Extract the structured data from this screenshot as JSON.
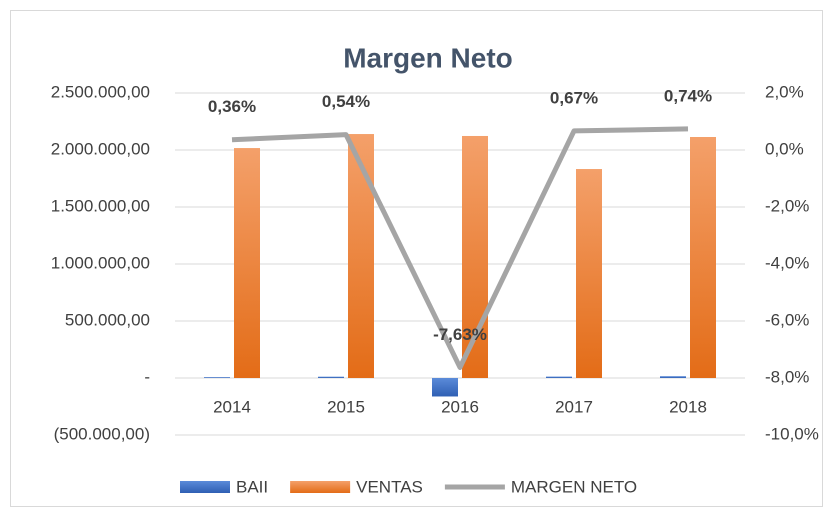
{
  "chart_data": {
    "type": "bar",
    "title": "Margen Neto",
    "categories": [
      "2014",
      "2015",
      "2016",
      "2017",
      "2018"
    ],
    "series": [
      {
        "name": "BAII",
        "color": "#4472c4",
        "values": [
          7260,
          11556,
          -162000,
          12281,
          15644
        ]
      },
      {
        "name": "VENTAS",
        "color": "#ed7d31",
        "values": [
          2017000,
          2140000,
          2123000,
          1833000,
          2114000
        ]
      },
      {
        "name": "MARGEN NETO",
        "color": "#a5a5a5",
        "type": "line",
        "axis": "y2",
        "values": [
          0.36,
          0.54,
          -7.63,
          0.67,
          0.74
        ],
        "value_labels": [
          "0,36%",
          "0,54%",
          "-7,63%",
          "0,67%",
          "0,74%"
        ]
      }
    ],
    "ylim": [
      -500000,
      2500000
    ],
    "yticks": [
      {
        "value": 2500000,
        "label": "2.500.000,00"
      },
      {
        "value": 2000000,
        "label": "2.000.000,00"
      },
      {
        "value": 1500000,
        "label": "1.500.000,00"
      },
      {
        "value": 1000000,
        "label": "1.000.000,00"
      },
      {
        "value": 500000,
        "label": "500.000,00"
      },
      {
        "value": 0,
        "label": "-"
      },
      {
        "value": -500000,
        "label": "(500.000,00)"
      }
    ],
    "y2lim": [
      -10,
      2
    ],
    "y2ticks": [
      {
        "value": 2,
        "label": "2,0%"
      },
      {
        "value": 0,
        "label": "0,0%"
      },
      {
        "value": -2,
        "label": "-2,0%"
      },
      {
        "value": -4,
        "label": "-4,0%"
      },
      {
        "value": -6,
        "label": "-6,0%"
      },
      {
        "value": -8,
        "label": "-8,0%"
      },
      {
        "value": -10,
        "label": "-10,0%"
      }
    ],
    "legend": "bottom"
  }
}
